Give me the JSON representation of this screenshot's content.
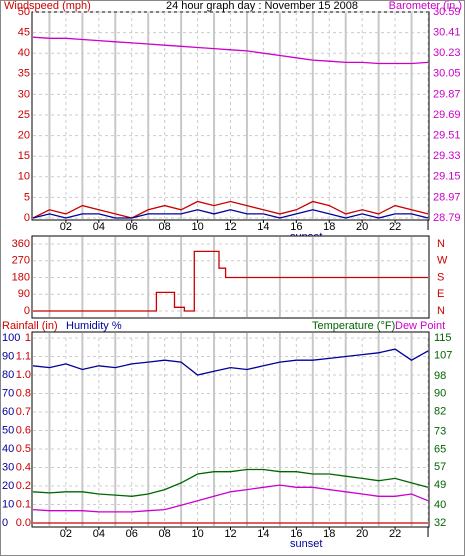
{
  "chart_data": [
    {
      "type": "line",
      "title": "24 hour graph day : November 15 2008",
      "x": [
        0,
        1,
        2,
        3,
        4,
        5,
        6,
        7,
        8,
        9,
        10,
        11,
        12,
        13,
        14,
        15,
        16,
        17,
        18,
        19,
        20,
        21,
        22,
        23,
        24
      ],
      "xlim": [
        0,
        24
      ],
      "xticks": [
        {
          "value": 2,
          "label": "02"
        },
        {
          "value": 4,
          "label": "04"
        },
        {
          "value": 6,
          "label": "06"
        },
        {
          "value": 8,
          "label": "08"
        },
        {
          "value": 10,
          "label": "10"
        },
        {
          "value": 12,
          "label": "12"
        },
        {
          "value": 14,
          "label": "14"
        },
        {
          "value": 16,
          "label": "16"
        },
        {
          "value": 18,
          "label": "18"
        },
        {
          "value": 20,
          "label": "20"
        },
        {
          "value": 22,
          "label": "22"
        },
        {
          "value": 24,
          "label": "I"
        }
      ],
      "xminorticks": [
        1,
        3,
        5,
        7,
        9,
        11,
        13,
        15,
        17,
        19,
        21,
        23
      ],
      "annotation": {
        "text": "sunset",
        "x": 16.6
      },
      "ylim": [
        0,
        50
      ],
      "yticks": [
        0,
        5,
        10,
        15,
        20,
        25,
        30,
        35,
        40,
        45,
        50
      ],
      "ycolor": "#cc0000",
      "y2lim": [
        28.79,
        30.59
      ],
      "y2ticks": [
        28.79,
        28.97,
        29.15,
        29.33,
        29.51,
        29.69,
        29.87,
        30.05,
        30.23,
        30.41,
        30.59
      ],
      "y2color": "#cc00cc",
      "grid": true,
      "series": [
        {
          "name": "Windspeed (mph)",
          "color": "#cc0000",
          "values": [
            0,
            2,
            1,
            3,
            2,
            1,
            0,
            2,
            3,
            2,
            4,
            3,
            4,
            3,
            2,
            1,
            2,
            4,
            3,
            1,
            2,
            1,
            3,
            2,
            1
          ]
        },
        {
          "color": "#000099",
          "values": [
            0,
            1,
            0,
            1,
            1,
            0,
            0,
            1,
            1,
            1,
            2,
            1,
            2,
            1,
            1,
            0,
            1,
            2,
            1,
            0,
            1,
            0,
            1,
            1,
            0
          ]
        },
        {
          "name": "Barometer (in.)",
          "color": "#cc00cc",
          "axis": "y2",
          "values": [
            30.37,
            30.36,
            30.36,
            30.35,
            30.34,
            30.33,
            30.32,
            30.31,
            30.3,
            30.29,
            30.28,
            30.27,
            30.26,
            30.25,
            30.23,
            30.21,
            30.19,
            30.17,
            30.16,
            30.15,
            30.15,
            30.14,
            30.14,
            30.14,
            30.15
          ]
        }
      ]
    },
    {
      "type": "line",
      "xlim": [
        0,
        24
      ],
      "xminorticks": [
        1,
        3,
        5,
        7,
        9,
        11,
        13,
        15,
        17,
        19,
        21,
        23
      ],
      "ylim": [
        0,
        360
      ],
      "yticks": [
        0,
        90,
        180,
        270,
        360
      ],
      "ycolor": "#cc0000",
      "y2lim": [
        0,
        360
      ],
      "y2ticks": [
        {
          "value": 0,
          "label": "N"
        },
        {
          "value": 90,
          "label": "E"
        },
        {
          "value": 180,
          "label": "S"
        },
        {
          "value": 270,
          "label": "W"
        },
        {
          "value": 360,
          "label": "N"
        }
      ],
      "y2color": "#cc0000",
      "grid": true,
      "series": [
        {
          "color": "#cc0000",
          "x": [
            0,
            7.5,
            7.5,
            8.6,
            8.6,
            9.2,
            9.2,
            9.8,
            9.8,
            11.3,
            11.3,
            11.7,
            11.7,
            24
          ],
          "values": [
            0,
            0,
            100,
            100,
            20,
            20,
            0,
            0,
            320,
            320,
            230,
            230,
            180,
            180
          ]
        }
      ]
    },
    {
      "type": "line",
      "x": [
        0,
        1,
        2,
        3,
        4,
        5,
        6,
        7,
        8,
        9,
        10,
        11,
        12,
        13,
        14,
        15,
        16,
        17,
        18,
        19,
        20,
        21,
        22,
        23,
        24
      ],
      "xlim": [
        0,
        24
      ],
      "xticks": [
        {
          "value": 2,
          "label": "02"
        },
        {
          "value": 4,
          "label": "04"
        },
        {
          "value": 6,
          "label": "06"
        },
        {
          "value": 8,
          "label": "08"
        },
        {
          "value": 10,
          "label": "10"
        },
        {
          "value": 12,
          "label": "12"
        },
        {
          "value": 14,
          "label": "14"
        },
        {
          "value": 16,
          "label": "16"
        },
        {
          "value": 18,
          "label": "18"
        },
        {
          "value": 20,
          "label": "20"
        },
        {
          "value": 22,
          "label": "22"
        },
        {
          "value": 24,
          "label": "I"
        }
      ],
      "xminorticks": [
        1,
        3,
        5,
        7,
        9,
        11,
        13,
        15,
        17,
        19,
        21,
        23
      ],
      "annotation": {
        "text": "sunset",
        "x": 16.6
      },
      "ylim": [
        0,
        100
      ],
      "yticks": [
        0,
        10,
        20,
        30,
        40,
        50,
        60,
        70,
        80,
        90,
        100
      ],
      "ycolor": "#000099",
      "y3lim": [
        0,
        1.2
      ],
      "y3ticks": [
        {
          "value": 0,
          "label": "0.0"
        },
        {
          "value": 0.12,
          "label": "0.1"
        },
        {
          "value": 0.24,
          "label": "0.2"
        },
        {
          "value": 0.36,
          "label": "0.4"
        },
        {
          "value": 0.48,
          "label": "0.5"
        },
        {
          "value": 0.6,
          "label": "0.6"
        },
        {
          "value": 0.72,
          "label": "0.7"
        },
        {
          "value": 0.84,
          "label": "0.8"
        },
        {
          "value": 0.96,
          "label": "1.0"
        },
        {
          "value": 1.08,
          "label": "1.1"
        },
        {
          "value": 1.2,
          "label": "1"
        }
      ],
      "y3color": "#cc0000",
      "y2lim": [
        32,
        115
      ],
      "y2ticks": [
        32,
        40,
        49,
        57,
        65,
        73,
        82,
        90,
        98,
        107,
        115
      ],
      "y2color": "#006600",
      "grid": true,
      "series": [
        {
          "name": "Rainfall (in)",
          "color": "#cc0000",
          "axis": "y3",
          "values": [
            0,
            0,
            0,
            0,
            0,
            0,
            0,
            0,
            0,
            0,
            0,
            0,
            0,
            0,
            0,
            0,
            0,
            0,
            0,
            0,
            0,
            0,
            0,
            0,
            0
          ]
        },
        {
          "name": "Humidity %",
          "color": "#000099",
          "values": [
            85,
            84,
            86,
            83,
            85,
            84,
            86,
            87,
            88,
            87,
            80,
            82,
            84,
            83,
            85,
            87,
            88,
            88,
            89,
            90,
            91,
            92,
            94,
            88,
            93
          ]
        },
        {
          "name": "Temperature (°F)",
          "color": "#006600",
          "axis": "y2",
          "values": [
            46,
            45.5,
            46,
            46,
            45,
            44.5,
            44,
            45,
            47,
            50,
            54,
            55,
            55,
            56,
            56,
            55,
            55,
            54,
            54,
            53,
            52,
            51,
            52,
            50,
            48
          ]
        },
        {
          "name": "Dew Point",
          "color": "#cc00cc",
          "axis": "y2",
          "values": [
            38,
            37.5,
            37.5,
            37.5,
            37,
            37,
            37,
            37.5,
            38,
            40,
            42,
            44,
            46,
            47,
            48,
            49,
            48,
            48,
            47,
            46,
            45,
            44,
            44,
            45,
            42
          ]
        }
      ]
    }
  ]
}
